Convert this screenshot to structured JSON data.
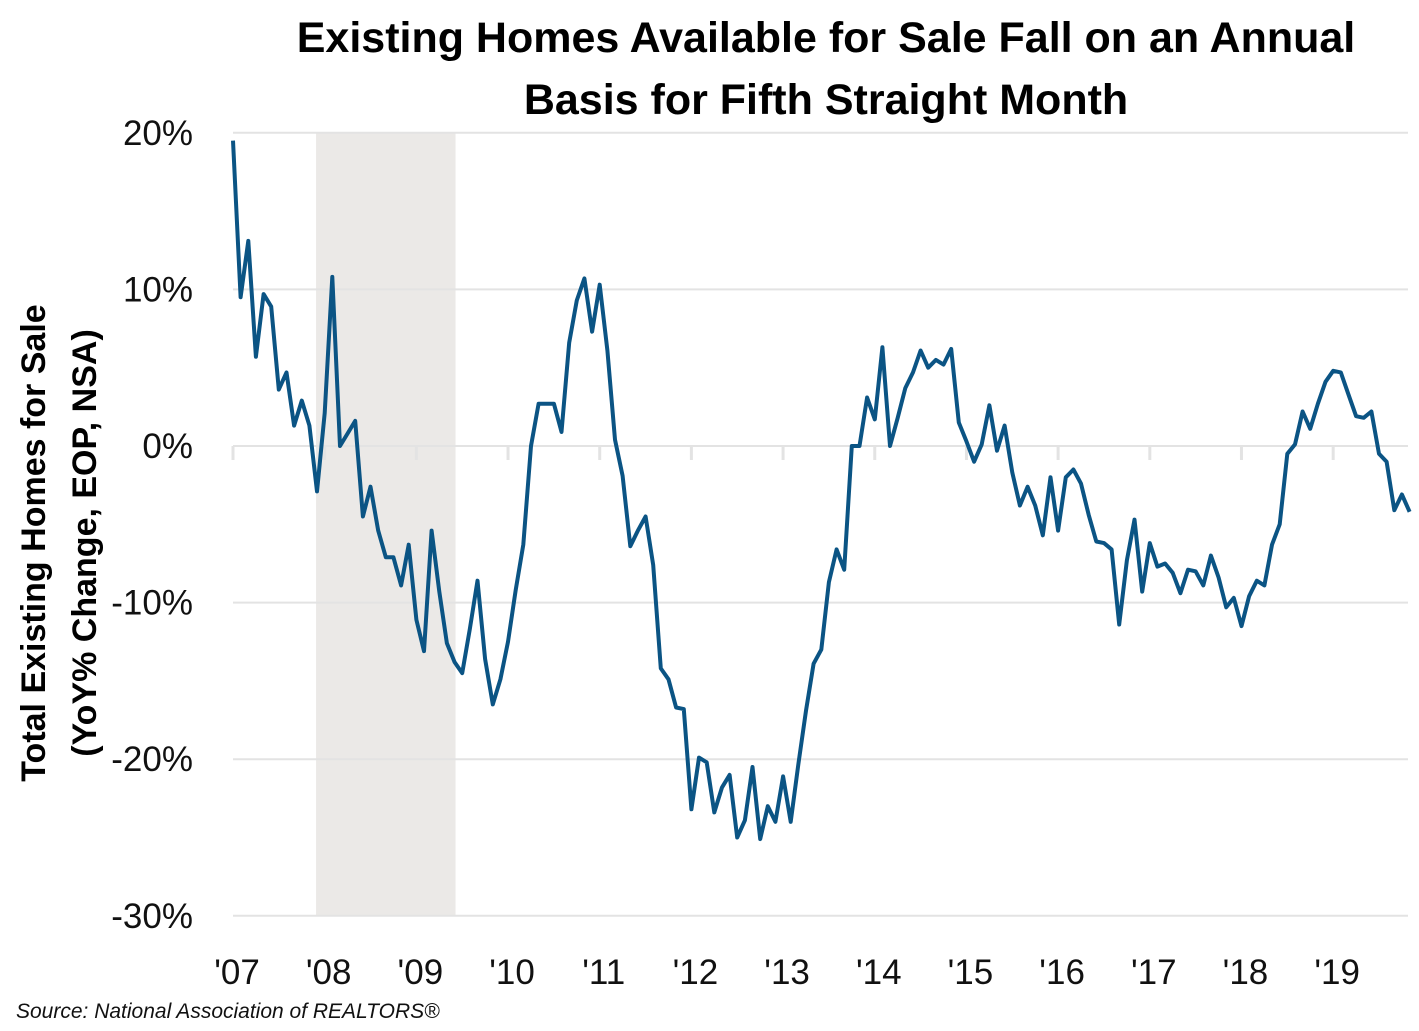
{
  "chart_data": {
    "type": "line",
    "title": [
      "Existing Homes Available for Sale Fall on an Annual",
      "Basis for Fifth Straight Month"
    ],
    "ylabel": [
      "Total Existing Homes for Sale",
      "(YoY% Change, EOP, NSA)"
    ],
    "xlabel": "",
    "source": "Source: National Association of REALTORS®",
    "ylim": [
      -30,
      20
    ],
    "yticks": [
      20,
      10,
      0,
      -10,
      -20,
      -30
    ],
    "ytick_labels": [
      "20%",
      "10%",
      "0%",
      "-10%",
      "-20%",
      "-30%"
    ],
    "xtick_labels": [
      "'07",
      "'08",
      "'09",
      "'10",
      "'11",
      "'12",
      "'13",
      "'14",
      "'15",
      "'16",
      "'17",
      "'18",
      "'19"
    ],
    "x_start": "2007-01",
    "x_frequency": "monthly",
    "grid": true,
    "line_color": "#0b5484",
    "recession_shading": {
      "start": "2007-12",
      "end": "2009-06",
      "color": "#ebe9e7"
    },
    "series": [
      {
        "name": "Total Existing Homes for Sale YoY%",
        "values": [
          19.5,
          9.5,
          13.1,
          5.7,
          9.7,
          8.9,
          3.6,
          4.7,
          1.3,
          2.9,
          1.3,
          -2.9,
          2.1,
          10.8,
          0,
          0.8,
          1.6,
          -4.5,
          -2.6,
          -5.4,
          -7.1,
          -7.1,
          -8.9,
          -6.3,
          -11.1,
          -13.1,
          -5.4,
          -9.3,
          -12.6,
          -13.8,
          -14.5,
          -11.7,
          -8.6,
          -13.6,
          -16.5,
          -14.9,
          -12.5,
          -9.2,
          -6.3,
          0,
          2.7,
          2.7,
          2.7,
          0.9,
          6.6,
          9.3,
          10.7,
          7.3,
          10.3,
          6.1,
          0.4,
          -1.9,
          -6.4,
          -5.4,
          -4.5,
          -7.6,
          -14.2,
          -14.9,
          -16.7,
          -16.8,
          -23.2,
          -19.9,
          -20.2,
          -23.4,
          -21.8,
          -21.0,
          -25.0,
          -23.9,
          -20.5,
          -25.1,
          -23.0,
          -24.0,
          -21.1,
          -24.0,
          -20.3,
          -16.9,
          -13.9,
          -13.0,
          -8.7,
          -6.6,
          -7.9,
          0,
          0,
          3.1,
          1.7,
          6.3,
          0,
          1.8,
          3.7,
          4.7,
          6.1,
          5.0,
          5.5,
          5.2,
          6.2,
          1.5,
          0.3,
          -1.0,
          0.1,
          2.6,
          -0.3,
          1.3,
          -1.7,
          -3.8,
          -2.6,
          -3.8,
          -5.7,
          -2.0,
          -5.4,
          -2.0,
          -1.5,
          -2.4,
          -4.4,
          -6.1,
          -6.2,
          -6.6,
          -11.4,
          -7.3,
          -4.7,
          -9.3,
          -6.2,
          -7.7,
          -7.5,
          -8.1,
          -9.4,
          -7.9,
          -8.0,
          -8.9,
          -7.0,
          -8.4,
          -10.3,
          -9.7,
          -11.5,
          -9.6,
          -8.6,
          -8.9,
          -6.3,
          -5.0,
          -0.5,
          0.1,
          2.2,
          1.1,
          2.7,
          4.1,
          4.8,
          4.7,
          3.3,
          1.9,
          1.8,
          2.2,
          -0.5,
          -1.0,
          -4.1,
          -3.1,
          -4.2
        ]
      }
    ]
  }
}
